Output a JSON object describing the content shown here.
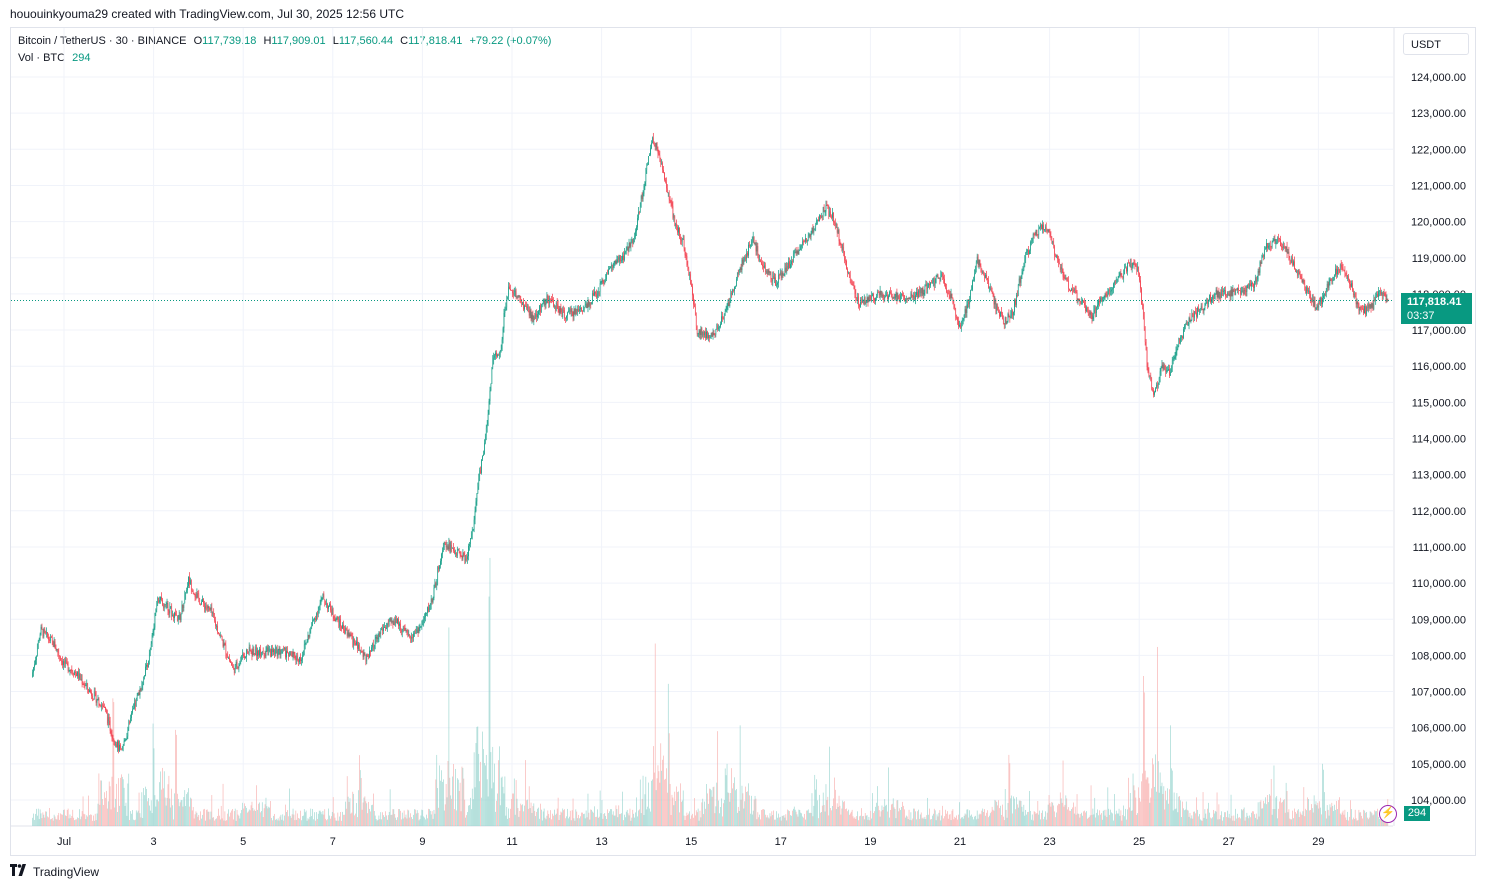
{
  "header": {
    "credit": "hououinkyouma29 created with TradingView.com, Jul 30, 2025 12:56 UTC"
  },
  "legend": {
    "symbol": "Bitcoin / TetherUS · 30 · BINANCE",
    "open_label": "O",
    "open": "117,739.18",
    "high_label": "H",
    "high": "117,909.01",
    "low_label": "L",
    "low": "117,560.44",
    "close_label": "C",
    "close": "117,818.41",
    "change": "+79.22 (+0.07%)",
    "vol_label": "Vol · BTC",
    "vol_value": "294"
  },
  "price_scale": {
    "currency": "USDT",
    "last_price": "117,818.41",
    "countdown": "03:37",
    "volume_tag": "294"
  },
  "footer": {
    "brand": "TradingView"
  },
  "colors": {
    "up": "#089981",
    "down": "#f23645",
    "up_volume": "#92d2cc",
    "down_volume": "#f7a9a7",
    "grid": "#f0f3fa",
    "bolt": "#9c27b0"
  },
  "icons": {
    "alert": "lightning-bolt-icon",
    "brand": "tradingview-logo-icon"
  },
  "chart_data": {
    "type": "candlestick",
    "timeframe": "30",
    "x_tick_labels": [
      "Jul",
      "3",
      "5",
      "7",
      "9",
      "11",
      "13",
      "15",
      "17",
      "19",
      "21",
      "23",
      "25",
      "27",
      "29"
    ],
    "y_tick_labels": [
      "104,000.00",
      "105,000.00",
      "106,000.00",
      "107,000.00",
      "108,000.00",
      "109,000.00",
      "110,000.00",
      "111,000.00",
      "112,000.00",
      "113,000.00",
      "114,000.00",
      "115,000.00",
      "116,000.00",
      "117,000.00",
      "118,000.00",
      "119,000.00",
      "120,000.00",
      "121,000.00",
      "122,000.00",
      "123,000.00",
      "124,000.00"
    ],
    "y_ticks": [
      104000,
      105000,
      106000,
      107000,
      108000,
      109000,
      110000,
      111000,
      112000,
      113000,
      114000,
      115000,
      116000,
      117000,
      118000,
      119000,
      120000,
      121000,
      122000,
      123000,
      124000
    ],
    "x_range_days": [
      0.3,
      30.55
    ],
    "ylim": [
      103200,
      124700
    ],
    "last_price": 117818.41,
    "grid": true,
    "price_path": [
      [
        0.3,
        107400
      ],
      [
        0.5,
        108700
      ],
      [
        0.8,
        108300
      ],
      [
        1.0,
        107800
      ],
      [
        1.3,
        107500
      ],
      [
        1.6,
        107000
      ],
      [
        1.9,
        106600
      ],
      [
        2.1,
        105800
      ],
      [
        2.3,
        105300
      ],
      [
        2.5,
        106200
      ],
      [
        2.75,
        107200
      ],
      [
        2.95,
        108100
      ],
      [
        3.1,
        109600
      ],
      [
        3.35,
        109300
      ],
      [
        3.6,
        109000
      ],
      [
        3.8,
        110100
      ],
      [
        4.0,
        109600
      ],
      [
        4.3,
        109200
      ],
      [
        4.55,
        108400
      ],
      [
        4.8,
        107600
      ],
      [
        5.1,
        108100
      ],
      [
        5.5,
        108100
      ],
      [
        5.9,
        108100
      ],
      [
        6.3,
        107900
      ],
      [
        6.6,
        109000
      ],
      [
        6.8,
        109600
      ],
      [
        7.1,
        109000
      ],
      [
        7.4,
        108500
      ],
      [
        7.8,
        107900
      ],
      [
        8.1,
        108700
      ],
      [
        8.4,
        109000
      ],
      [
        8.7,
        108500
      ],
      [
        9.0,
        108800
      ],
      [
        9.25,
        109600
      ],
      [
        9.5,
        111200
      ],
      [
        9.7,
        110900
      ],
      [
        10.0,
        110700
      ],
      [
        10.15,
        111500
      ],
      [
        10.3,
        113000
      ],
      [
        10.45,
        114200
      ],
      [
        10.6,
        116300
      ],
      [
        10.75,
        116200
      ],
      [
        10.85,
        117500
      ],
      [
        10.95,
        118200
      ],
      [
        11.2,
        117800
      ],
      [
        11.5,
        117300
      ],
      [
        11.8,
        117900
      ],
      [
        12.2,
        117400
      ],
      [
        12.6,
        117600
      ],
      [
        12.9,
        118000
      ],
      [
        13.2,
        118700
      ],
      [
        13.5,
        119000
      ],
      [
        13.75,
        119600
      ],
      [
        13.95,
        120900
      ],
      [
        14.15,
        122400
      ],
      [
        14.35,
        121700
      ],
      [
        14.5,
        120800
      ],
      [
        14.65,
        120000
      ],
      [
        14.85,
        119400
      ],
      [
        15.0,
        118400
      ],
      [
        15.15,
        117000
      ],
      [
        15.3,
        116900
      ],
      [
        15.5,
        116800
      ],
      [
        15.7,
        117300
      ],
      [
        15.9,
        117900
      ],
      [
        16.1,
        118700
      ],
      [
        16.4,
        119500
      ],
      [
        16.6,
        118800
      ],
      [
        16.9,
        118300
      ],
      [
        17.2,
        118800
      ],
      [
        17.5,
        119400
      ],
      [
        17.8,
        119900
      ],
      [
        18.0,
        120400
      ],
      [
        18.2,
        120100
      ],
      [
        18.4,
        119200
      ],
      [
        18.6,
        118200
      ],
      [
        18.8,
        117700
      ],
      [
        19.0,
        117900
      ],
      [
        19.3,
        118000
      ],
      [
        19.6,
        117900
      ],
      [
        20.0,
        117900
      ],
      [
        20.3,
        118200
      ],
      [
        20.6,
        118500
      ],
      [
        20.85,
        117800
      ],
      [
        21.0,
        117000
      ],
      [
        21.2,
        117700
      ],
      [
        21.4,
        119000
      ],
      [
        21.6,
        118400
      ],
      [
        21.8,
        117700
      ],
      [
        22.0,
        117200
      ],
      [
        22.2,
        117500
      ],
      [
        22.45,
        118900
      ],
      [
        22.7,
        119700
      ],
      [
        22.95,
        119900
      ],
      [
        23.2,
        118900
      ],
      [
        23.45,
        118200
      ],
      [
        23.7,
        117800
      ],
      [
        23.95,
        117400
      ],
      [
        24.2,
        117900
      ],
      [
        24.5,
        118300
      ],
      [
        24.8,
        118800
      ],
      [
        25.0,
        118700
      ],
      [
        25.1,
        117500
      ],
      [
        25.2,
        116000
      ],
      [
        25.35,
        115200
      ],
      [
        25.55,
        116000
      ],
      [
        25.7,
        115800
      ],
      [
        25.85,
        116500
      ],
      [
        26.1,
        117200
      ],
      [
        26.4,
        117600
      ],
      [
        26.7,
        118000
      ],
      [
        27.0,
        118000
      ],
      [
        27.3,
        118100
      ],
      [
        27.6,
        118300
      ],
      [
        27.85,
        119300
      ],
      [
        28.1,
        119500
      ],
      [
        28.35,
        119100
      ],
      [
        28.6,
        118500
      ],
      [
        28.9,
        117700
      ],
      [
        29.1,
        117800
      ],
      [
        29.3,
        118400
      ],
      [
        29.55,
        118800
      ],
      [
        29.75,
        118200
      ],
      [
        29.95,
        117500
      ],
      [
        30.2,
        117600
      ],
      [
        30.4,
        118100
      ],
      [
        30.55,
        117818
      ]
    ],
    "volume_spikes_btc": [
      [
        2.1,
        120
      ],
      [
        3.0,
        75
      ],
      [
        3.5,
        70
      ],
      [
        5.3,
        38
      ],
      [
        7.6,
        52
      ],
      [
        9.6,
        165
      ],
      [
        10.35,
        70
      ],
      [
        10.5,
        195
      ],
      [
        11.3,
        60
      ],
      [
        14.2,
        126
      ],
      [
        14.5,
        80
      ],
      [
        15.6,
        86
      ],
      [
        16.1,
        80
      ],
      [
        18.1,
        64
      ],
      [
        19.4,
        46
      ],
      [
        22.1,
        56
      ],
      [
        23.3,
        50
      ],
      [
        25.1,
        107
      ],
      [
        25.4,
        110
      ],
      [
        25.7,
        48
      ],
      [
        28.0,
        56
      ],
      [
        29.1,
        45
      ]
    ]
  }
}
